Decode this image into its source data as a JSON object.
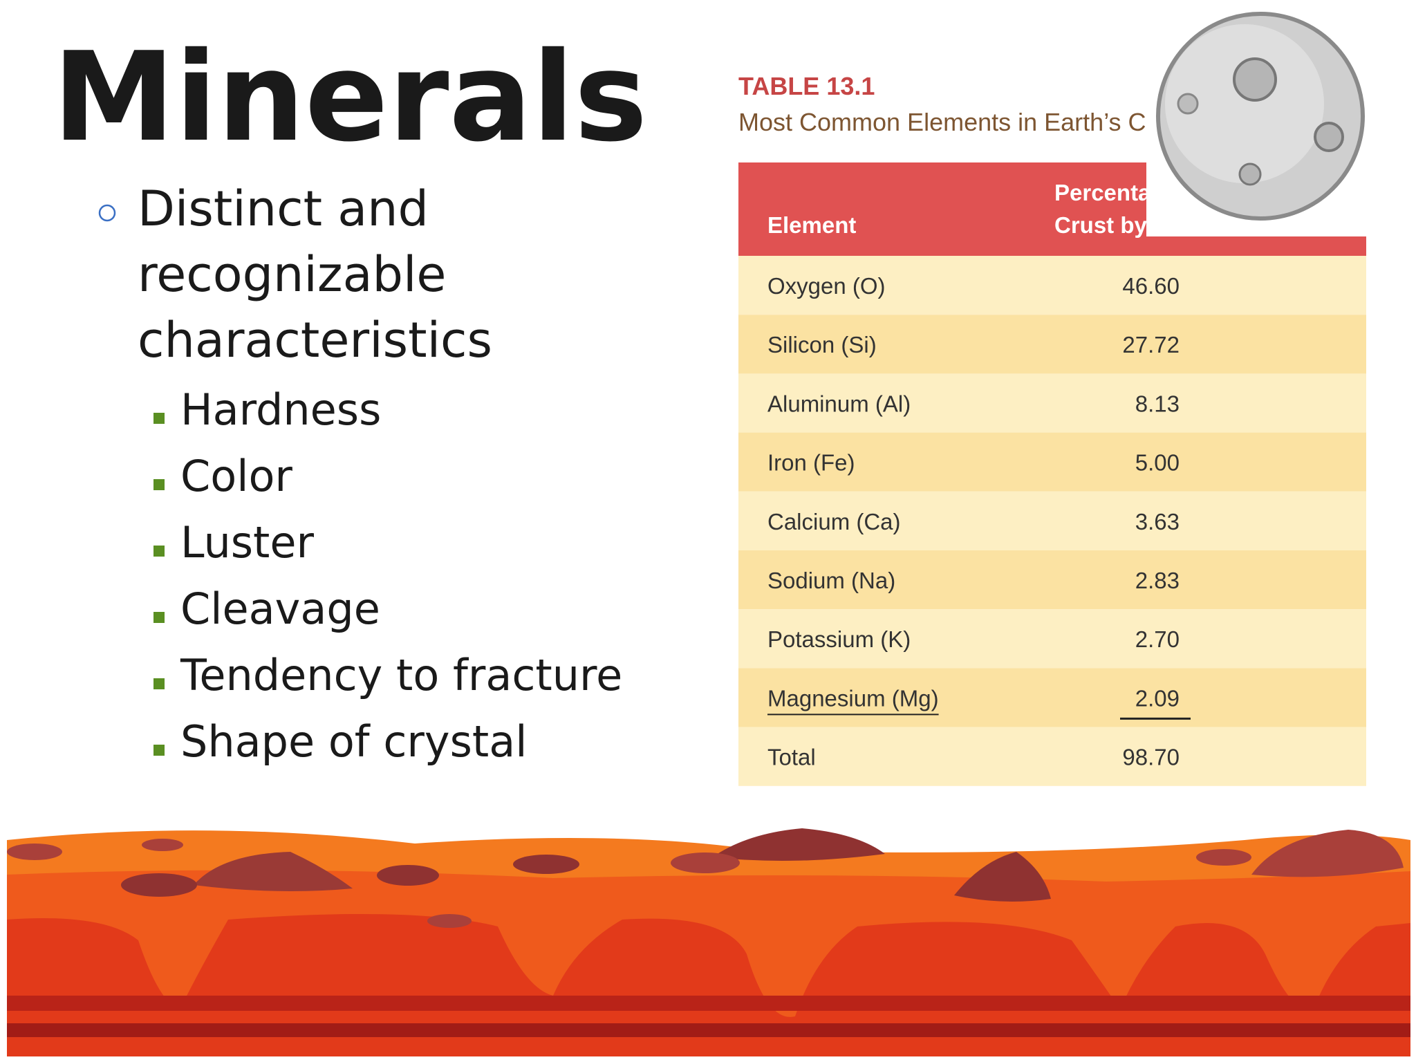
{
  "title": "Minerals",
  "bullet": {
    "lines": [
      "Distinct and",
      "recognizable",
      "characteristics"
    ],
    "sub_bullets": [
      "Hardness",
      "Color",
      "Luster",
      "Cleavage",
      "Tendency to fracture",
      "Shape of crystal"
    ]
  },
  "table": {
    "caption": "TABLE 13.1",
    "title": "Most Common Elements in Earth’s Crus",
    "header": {
      "element": "Element",
      "percentage_lines": [
        "Percentag",
        "Crust by"
      ]
    },
    "rows": [
      [
        "Oxygen (O)",
        "46.60"
      ],
      [
        "Silicon (Si)",
        "27.72"
      ],
      [
        "Aluminum (Al)",
        "8.13"
      ],
      [
        "Iron (Fe)",
        "5.00"
      ],
      [
        "Calcium (Ca)",
        "3.63"
      ],
      [
        "Sodium (Na)",
        "2.83"
      ],
      [
        "Potassium (K)",
        "2.70"
      ],
      [
        "Magnesium (Mg)",
        "2.09"
      ],
      [
        "Total",
        "98.70"
      ]
    ]
  }
}
